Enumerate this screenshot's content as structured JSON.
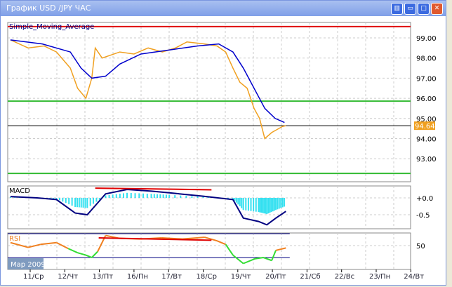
{
  "window": {
    "title": "График USD /JPY  ЧАС",
    "buttons": [
      {
        "name": "tile",
        "glyph": "▥"
      },
      {
        "name": "minimize",
        "glyph": "▭"
      },
      {
        "name": "maximize",
        "glyph": "□"
      },
      {
        "name": "close",
        "glyph": "✕"
      }
    ]
  },
  "colors": {
    "price": "#f0a020",
    "sma": "#0000cc",
    "level_red": "#e00000",
    "level_green": "#33bb33",
    "macd_main": "#000080",
    "macd_hist": "#33e0f0",
    "rsi": "#f08020",
    "rsi_low": "#33dd33"
  },
  "chart_data": [
    {
      "type": "line",
      "title": "Simple_Moving_Average",
      "y_ticks": [
        "99.00",
        "98.00",
        "97.00",
        "96.00",
        "95.00",
        "94.00",
        "93.00"
      ],
      "ylim": [
        92.0,
        99.8
      ],
      "current_price": "94.64",
      "levels": {
        "red": 99.56,
        "green_upper": 95.86,
        "green_lower": 92.27,
        "current": 94.64
      },
      "series": [
        {
          "key": "price",
          "points": [
            [
              -0.57,
              98.9
            ],
            [
              -0.06,
              98.5
            ],
            [
              0.4,
              98.6
            ],
            [
              0.76,
              98.3
            ],
            [
              1.16,
              97.5
            ],
            [
              1.37,
              96.5
            ],
            [
              1.61,
              96.0
            ],
            [
              1.78,
              97.0
            ],
            [
              1.88,
              98.5
            ],
            [
              2.08,
              98.0
            ],
            [
              2.59,
              98.3
            ],
            [
              3.0,
              98.2
            ],
            [
              3.41,
              98.5
            ],
            [
              3.82,
              98.3
            ],
            [
              4.2,
              98.5
            ],
            [
              4.53,
              98.8
            ],
            [
              5.04,
              98.7
            ],
            [
              5.4,
              98.6
            ],
            [
              5.65,
              98.3
            ],
            [
              5.86,
              97.5
            ],
            [
              6.06,
              96.8
            ],
            [
              6.27,
              96.5
            ],
            [
              6.47,
              95.5
            ],
            [
              6.63,
              95.0
            ],
            [
              6.78,
              94.0
            ],
            [
              6.98,
              94.3
            ],
            [
              7.29,
              94.6
            ],
            [
              7.39,
              94.64
            ]
          ]
        },
        {
          "key": "sma",
          "points": [
            [
              -0.57,
              98.9
            ],
            [
              0.35,
              98.7
            ],
            [
              1.16,
              98.3
            ],
            [
              1.47,
              97.5
            ],
            [
              1.78,
              97.0
            ],
            [
              2.18,
              97.1
            ],
            [
              2.59,
              97.7
            ],
            [
              3.2,
              98.2
            ],
            [
              4.02,
              98.4
            ],
            [
              4.84,
              98.6
            ],
            [
              5.45,
              98.7
            ],
            [
              5.86,
              98.3
            ],
            [
              6.16,
              97.5
            ],
            [
              6.47,
              96.5
            ],
            [
              6.78,
              95.5
            ],
            [
              7.08,
              95.0
            ],
            [
              7.35,
              94.8
            ]
          ]
        }
      ]
    },
    {
      "type": "line",
      "title": "MACD",
      "y_ticks": [
        "+0.0",
        "-0.5"
      ],
      "ylim": [
        -0.9,
        0.35
      ],
      "series": [
        {
          "key": "macd",
          "points": [
            [
              -0.57,
              0.04
            ],
            [
              0.2,
              0.0
            ],
            [
              0.76,
              -0.05
            ],
            [
              1.3,
              -0.45
            ],
            [
              1.65,
              -0.5
            ],
            [
              2.18,
              0.12
            ],
            [
              2.8,
              0.25
            ],
            [
              3.5,
              0.2
            ],
            [
              4.02,
              0.15
            ],
            [
              5.0,
              0.05
            ],
            [
              5.86,
              -0.05
            ],
            [
              6.16,
              -0.6
            ],
            [
              6.6,
              -0.7
            ],
            [
              6.84,
              -0.8
            ],
            [
              7.1,
              -0.6
            ],
            [
              7.39,
              -0.4
            ]
          ]
        },
        {
          "key": "trend",
          "points": [
            [
              1.88,
              0.29
            ],
            [
              5.24,
              0.24
            ]
          ]
        }
      ]
    },
    {
      "type": "line",
      "title": "RSI",
      "y_ticks": [
        "50"
      ],
      "ylim": [
        10,
        80
      ],
      "bands": [
        70,
        30
      ],
      "series": [
        {
          "key": "rsi",
          "points": [
            [
              -0.57,
              55
            ],
            [
              -0.06,
              47
            ],
            [
              0.3,
              52
            ],
            [
              0.76,
              55
            ],
            [
              1.1,
              45
            ],
            [
              1.37,
              38
            ],
            [
              1.61,
              34
            ],
            [
              1.78,
              30
            ],
            [
              1.95,
              40
            ],
            [
              2.18,
              67
            ],
            [
              2.6,
              62
            ],
            [
              3.2,
              61
            ],
            [
              3.8,
              63
            ],
            [
              4.4,
              61
            ],
            [
              5.04,
              64
            ],
            [
              5.4,
              58
            ],
            [
              5.65,
              52
            ],
            [
              5.86,
              34
            ],
            [
              6.16,
              20
            ],
            [
              6.5,
              28
            ],
            [
              6.74,
              30
            ],
            [
              6.98,
              25
            ],
            [
              7.1,
              42
            ],
            [
              7.39,
              46
            ]
          ]
        },
        {
          "key": "trend",
          "points": [
            [
              1.98,
              63
            ],
            [
              5.24,
              59
            ]
          ]
        }
      ]
    }
  ],
  "x_axis": {
    "ticks": [
      "11/Ср",
      "12/Чт",
      "13/Пт",
      "16/Пн",
      "17/Вт",
      "18/Ср",
      "19/Чт",
      "20/Пт",
      "21/Сб",
      "22/Вс",
      "23/Пн",
      "24/Вт"
    ],
    "period_label": "Мар 2009"
  }
}
